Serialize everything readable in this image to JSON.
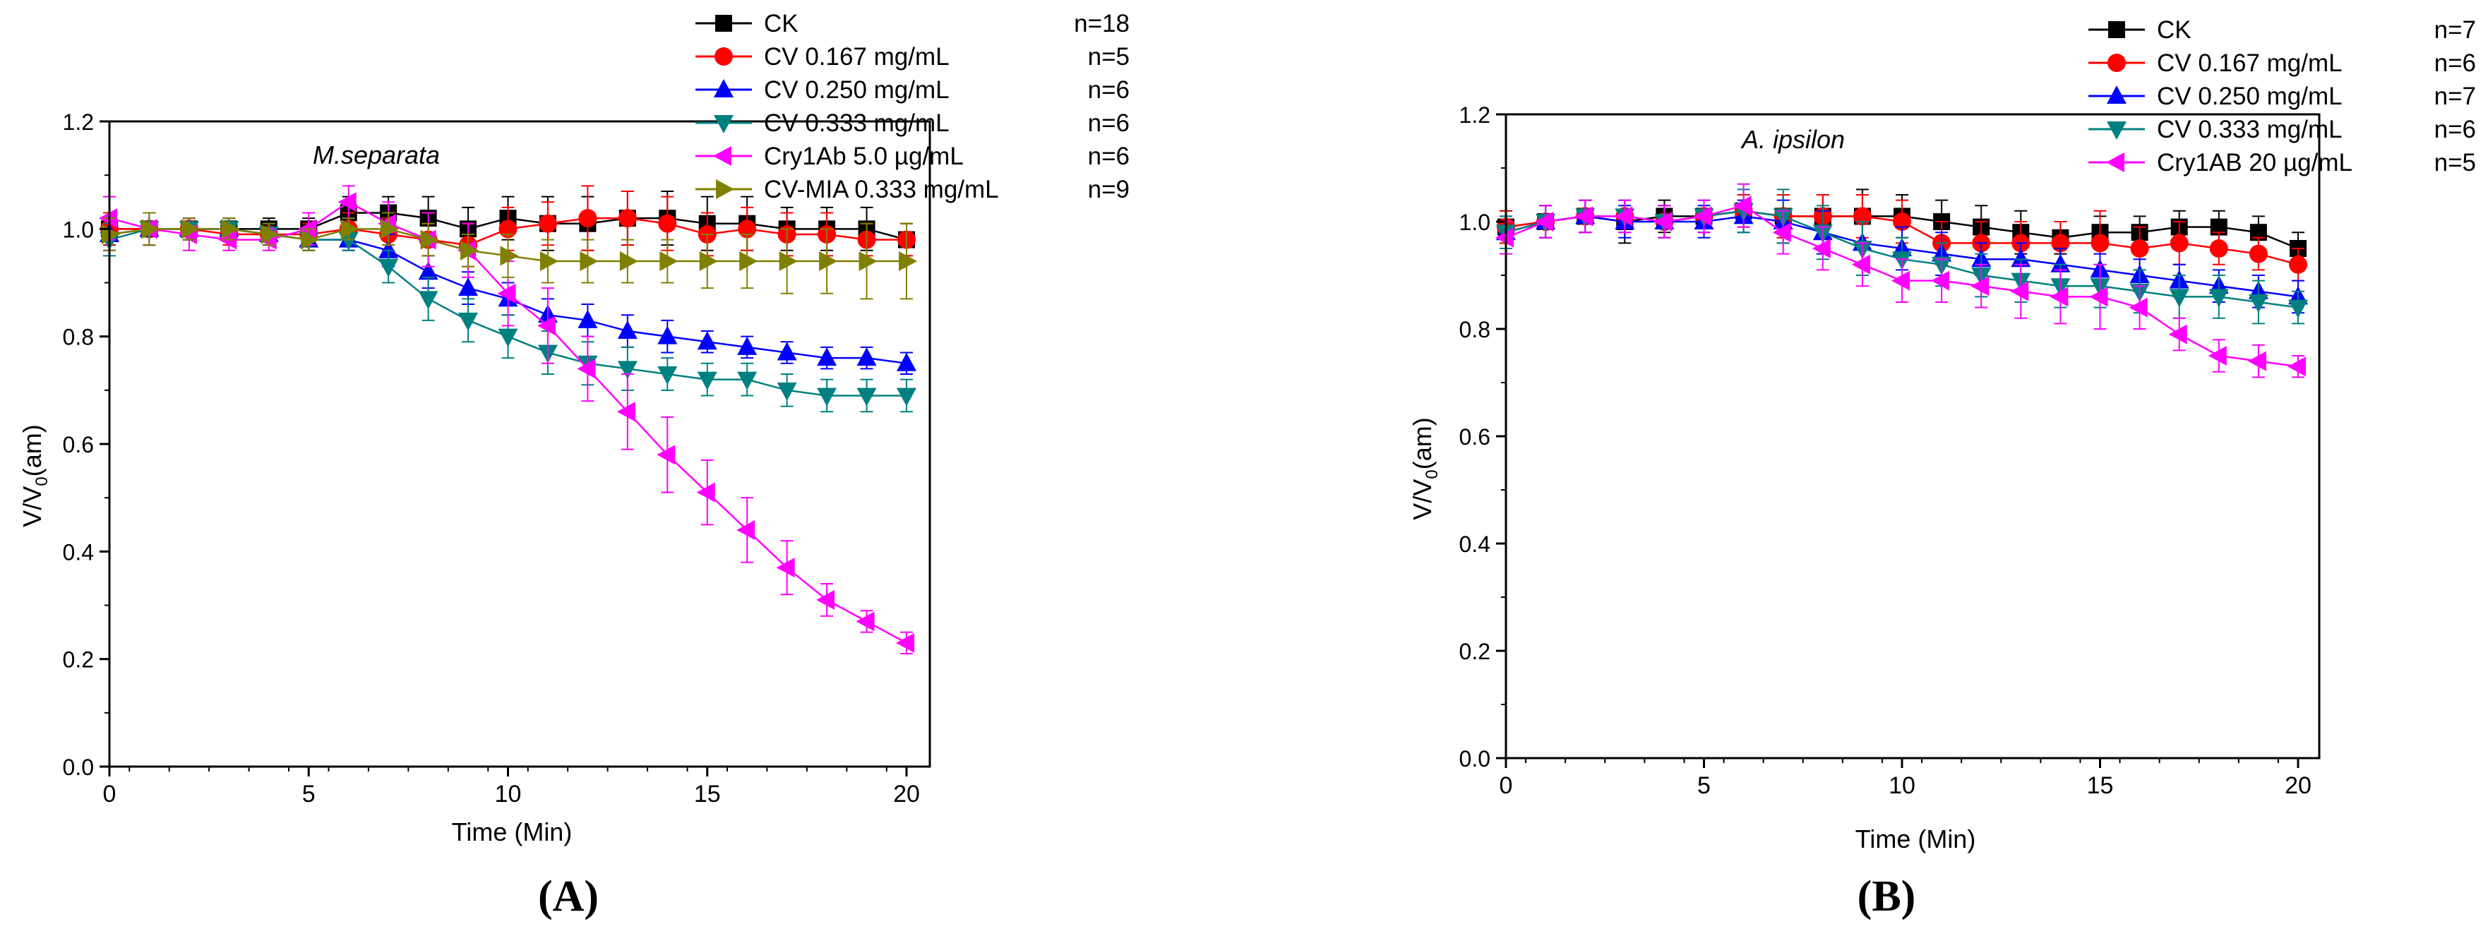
{
  "chart_data": [
    {
      "panel_label": "(A)",
      "type": "line",
      "title": "M.separata",
      "xlabel": "Time (Min)",
      "ylabel": "V/V0(am)",
      "ylabel_main": "V/V",
      "ylabel_sub": "0",
      "ylabel_tail": "(am)",
      "xlim": [
        0,
        20.5
      ],
      "ylim": [
        0,
        1.2
      ],
      "xticks": [
        0,
        5,
        10,
        15,
        20
      ],
      "xtick_labels": [
        "0",
        "5",
        "10",
        "15",
        "20"
      ],
      "yticks": [
        0.0,
        0.2,
        0.4,
        0.6,
        0.8,
        1.0,
        1.2
      ],
      "ytick_labels": [
        "0.0",
        "0.2",
        "0.4",
        "0.6",
        "0.8",
        "1.0",
        "1.2"
      ],
      "legend_position": "top-right",
      "x": [
        0,
        1,
        2,
        3,
        4,
        5,
        6,
        7,
        8,
        9,
        10,
        11,
        12,
        13,
        14,
        15,
        16,
        17,
        18,
        19,
        20
      ],
      "series": [
        {
          "name": "CK",
          "n": "n=18",
          "color": "#000000",
          "marker": "square",
          "values": [
            1.0,
            1.0,
            1.0,
            1.0,
            1.0,
            1.0,
            1.03,
            1.03,
            1.02,
            1.0,
            1.02,
            1.01,
            1.01,
            1.02,
            1.02,
            1.01,
            1.01,
            1.0,
            1.0,
            1.0,
            0.98
          ],
          "errors": [
            0.03,
            0.03,
            0.02,
            0.02,
            0.02,
            0.02,
            0.03,
            0.03,
            0.04,
            0.04,
            0.04,
            0.05,
            0.05,
            0.05,
            0.05,
            0.05,
            0.05,
            0.04,
            0.04,
            0.04,
            0.03
          ]
        },
        {
          "name": "CV 0.167 mg/mL",
          "n": "n=5",
          "color": "#ff0000",
          "marker": "circle",
          "values": [
            1.0,
            1.0,
            1.0,
            0.99,
            0.99,
            0.99,
            1.0,
            0.99,
            0.98,
            0.97,
            1.0,
            1.01,
            1.02,
            1.02,
            1.01,
            0.99,
            1.0,
            0.99,
            0.99,
            0.98,
            0.98
          ],
          "errors": [
            0.03,
            0.03,
            0.02,
            0.02,
            0.02,
            0.02,
            0.03,
            0.03,
            0.03,
            0.04,
            0.04,
            0.04,
            0.06,
            0.05,
            0.05,
            0.04,
            0.04,
            0.04,
            0.04,
            0.03,
            0.03
          ]
        },
        {
          "name": "CV 0.250 mg/mL",
          "n": "n=6",
          "color": "#0000ff",
          "marker": "triangle-up",
          "values": [
            0.99,
            1.0,
            1.0,
            1.0,
            0.99,
            0.98,
            0.98,
            0.96,
            0.92,
            0.89,
            0.87,
            0.84,
            0.83,
            0.81,
            0.8,
            0.79,
            0.78,
            0.77,
            0.76,
            0.76,
            0.75
          ],
          "errors": [
            0.03,
            0.03,
            0.02,
            0.02,
            0.02,
            0.02,
            0.02,
            0.03,
            0.03,
            0.03,
            0.03,
            0.03,
            0.03,
            0.03,
            0.03,
            0.02,
            0.02,
            0.02,
            0.02,
            0.02,
            0.02
          ]
        },
        {
          "name": "CV 0.333 mg/mL",
          "n": "n=6",
          "color": "#008080",
          "marker": "triangle-down",
          "values": [
            0.98,
            1.0,
            1.0,
            1.0,
            0.99,
            0.98,
            0.98,
            0.93,
            0.87,
            0.83,
            0.8,
            0.77,
            0.75,
            0.74,
            0.73,
            0.72,
            0.72,
            0.7,
            0.69,
            0.69,
            0.69
          ],
          "errors": [
            0.03,
            0.03,
            0.02,
            0.02,
            0.02,
            0.02,
            0.02,
            0.03,
            0.04,
            0.04,
            0.04,
            0.04,
            0.04,
            0.04,
            0.03,
            0.03,
            0.03,
            0.03,
            0.03,
            0.03,
            0.03
          ]
        },
        {
          "name": "Cry1Ab 5.0 µg/mL",
          "n": "n=6",
          "color": "#ff00ff",
          "marker": "triangle-left",
          "values": [
            1.02,
            1.0,
            0.99,
            0.98,
            0.98,
            1.0,
            1.05,
            1.01,
            0.98,
            0.96,
            0.88,
            0.82,
            0.74,
            0.66,
            0.58,
            0.51,
            0.44,
            0.37,
            0.31,
            0.27,
            0.23
          ],
          "errors": [
            0.04,
            0.03,
            0.03,
            0.02,
            0.02,
            0.03,
            0.03,
            0.04,
            0.05,
            0.05,
            0.06,
            0.07,
            0.06,
            0.07,
            0.07,
            0.06,
            0.06,
            0.05,
            0.03,
            0.02,
            0.02
          ]
        },
        {
          "name": "CV-MIA 0.333 mg/mL",
          "n": "n=9",
          "color": "#808000",
          "marker": "triangle-right",
          "values": [
            0.99,
            1.0,
            1.0,
            1.0,
            0.99,
            0.98,
            1.0,
            1.0,
            0.98,
            0.96,
            0.95,
            0.94,
            0.94,
            0.94,
            0.94,
            0.94,
            0.94,
            0.94,
            0.94,
            0.94,
            0.94
          ],
          "errors": [
            0.03,
            0.03,
            0.02,
            0.02,
            0.02,
            0.02,
            0.02,
            0.03,
            0.03,
            0.03,
            0.04,
            0.04,
            0.04,
            0.04,
            0.04,
            0.05,
            0.05,
            0.06,
            0.06,
            0.07,
            0.07
          ]
        }
      ]
    },
    {
      "panel_label": "(B)",
      "type": "line",
      "title": "A. ipsilon",
      "xlabel": "Time (Min)",
      "ylabel": "V/V0(am)",
      "ylabel_main": "V/V",
      "ylabel_sub": "0",
      "ylabel_tail": "(am)",
      "xlim": [
        0,
        20.5
      ],
      "ylim": [
        0,
        1.2
      ],
      "xticks": [
        0,
        5,
        10,
        15,
        20
      ],
      "xtick_labels": [
        "0",
        "5",
        "10",
        "15",
        "20"
      ],
      "yticks": [
        0.0,
        0.2,
        0.4,
        0.6,
        0.8,
        1.0,
        1.2
      ],
      "ytick_labels": [
        "0.0",
        "0.2",
        "0.4",
        "0.6",
        "0.8",
        "1.0",
        "1.2"
      ],
      "legend_position": "top-right",
      "x": [
        0,
        1,
        2,
        3,
        4,
        5,
        6,
        7,
        8,
        9,
        10,
        11,
        12,
        13,
        14,
        15,
        16,
        17,
        18,
        19,
        20
      ],
      "series": [
        {
          "name": "CK",
          "n": "n=7",
          "color": "#000000",
          "marker": "square",
          "values": [
            0.99,
            1.0,
            1.01,
            1.0,
            1.01,
            1.01,
            1.02,
            1.01,
            1.01,
            1.01,
            1.01,
            1.0,
            0.99,
            0.98,
            0.97,
            0.98,
            0.98,
            0.99,
            0.99,
            0.98,
            0.95
          ],
          "errors": [
            0.03,
            0.03,
            0.03,
            0.04,
            0.03,
            0.03,
            0.03,
            0.04,
            0.04,
            0.05,
            0.04,
            0.04,
            0.04,
            0.04,
            0.03,
            0.03,
            0.03,
            0.03,
            0.03,
            0.03,
            0.03
          ]
        },
        {
          "name": "CV 0.167 mg/mL",
          "n": "n=6",
          "color": "#ff0000",
          "marker": "circle",
          "values": [
            0.99,
            1.0,
            1.01,
            1.01,
            1.0,
            1.01,
            1.02,
            1.01,
            1.01,
            1.01,
            1.0,
            0.96,
            0.96,
            0.96,
            0.96,
            0.96,
            0.95,
            0.96,
            0.95,
            0.94,
            0.92
          ],
          "errors": [
            0.03,
            0.03,
            0.03,
            0.03,
            0.03,
            0.03,
            0.03,
            0.04,
            0.04,
            0.04,
            0.04,
            0.04,
            0.04,
            0.04,
            0.04,
            0.06,
            0.04,
            0.04,
            0.03,
            0.03,
            0.03
          ]
        },
        {
          "name": "CV 0.250 mg/mL",
          "n": "n=7",
          "color": "#0000ff",
          "marker": "triangle-up",
          "values": [
            0.98,
            1.0,
            1.01,
            1.0,
            1.0,
            1.0,
            1.01,
            1.0,
            0.98,
            0.96,
            0.95,
            0.94,
            0.93,
            0.93,
            0.92,
            0.91,
            0.9,
            0.89,
            0.88,
            0.87,
            0.86
          ],
          "errors": [
            0.03,
            0.03,
            0.03,
            0.03,
            0.03,
            0.03,
            0.03,
            0.04,
            0.04,
            0.04,
            0.04,
            0.04,
            0.03,
            0.03,
            0.03,
            0.03,
            0.03,
            0.03,
            0.03,
            0.03,
            0.03
          ]
        },
        {
          "name": "CV 0.333 mg/mL",
          "n": "n=6",
          "color": "#008080",
          "marker": "triangle-down",
          "values": [
            0.98,
            1.0,
            1.01,
            1.01,
            1.0,
            1.01,
            1.02,
            1.01,
            0.98,
            0.95,
            0.93,
            0.92,
            0.9,
            0.89,
            0.88,
            0.88,
            0.87,
            0.86,
            0.86,
            0.85,
            0.84
          ],
          "errors": [
            0.03,
            0.03,
            0.03,
            0.03,
            0.03,
            0.03,
            0.04,
            0.05,
            0.05,
            0.05,
            0.04,
            0.04,
            0.04,
            0.04,
            0.04,
            0.04,
            0.04,
            0.04,
            0.04,
            0.04,
            0.03
          ]
        },
        {
          "name": "Cry1AB 20 µg/mL",
          "n": "n=5",
          "color": "#ff00ff",
          "marker": "triangle-left",
          "values": [
            0.97,
            1.0,
            1.01,
            1.01,
            1.0,
            1.01,
            1.03,
            0.98,
            0.95,
            0.92,
            0.89,
            0.89,
            0.88,
            0.87,
            0.86,
            0.86,
            0.84,
            0.79,
            0.75,
            0.74,
            0.73
          ],
          "errors": [
            0.03,
            0.03,
            0.03,
            0.03,
            0.03,
            0.03,
            0.04,
            0.04,
            0.04,
            0.04,
            0.04,
            0.04,
            0.04,
            0.05,
            0.05,
            0.06,
            0.04,
            0.03,
            0.03,
            0.03,
            0.02
          ]
        }
      ]
    }
  ]
}
